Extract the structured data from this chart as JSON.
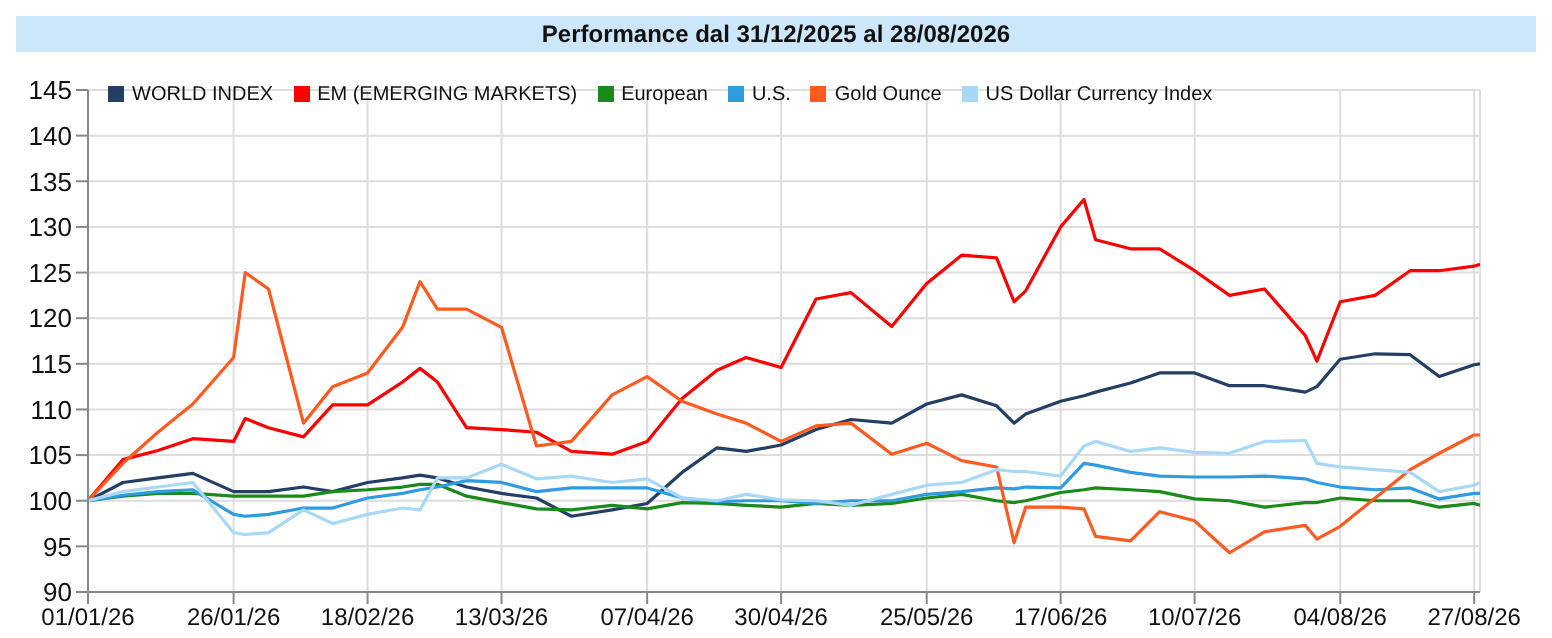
{
  "chart_data": {
    "type": "line",
    "title": "Performance dal 31/12/2025 al 28/08/2026",
    "x": [
      "2026-01-01",
      "2026-01-07",
      "2026-01-13",
      "2026-01-19",
      "2026-01-26",
      "2026-01-28",
      "2026-02-01",
      "2026-02-07",
      "2026-02-12",
      "2026-02-18",
      "2026-02-24",
      "2026-02-27",
      "2026-03-02",
      "2026-03-07",
      "2026-03-13",
      "2026-03-19",
      "2026-03-25",
      "2026-04-01",
      "2026-04-07",
      "2026-04-13",
      "2026-04-19",
      "2026-04-24",
      "2026-04-30",
      "2026-05-06",
      "2026-05-12",
      "2026-05-19",
      "2026-05-25",
      "2026-05-31",
      "2026-06-06",
      "2026-06-09",
      "2026-06-11",
      "2026-06-17",
      "2026-06-21",
      "2026-06-23",
      "2026-06-29",
      "2026-07-04",
      "2026-07-10",
      "2026-07-16",
      "2026-07-22",
      "2026-07-29",
      "2026-07-31",
      "2026-08-04",
      "2026-08-10",
      "2026-08-16",
      "2026-08-21",
      "2026-08-27",
      "2026-08-28"
    ],
    "series": [
      {
        "name": "WORLD INDEX",
        "color": "#243f66",
        "values": [
          100,
          102,
          102.5,
          103,
          101,
          101,
          101,
          101.5,
          101,
          102,
          102.5,
          102.8,
          102.5,
          101.5,
          100.8,
          100.3,
          98.3,
          99,
          99.7,
          103.1,
          105.8,
          105.4,
          106.1,
          107.8,
          108.9,
          108.5,
          110.6,
          111.6,
          110.4,
          108.5,
          109.5,
          110.9,
          111.5,
          111.9,
          112.9,
          114,
          114,
          112.6,
          112.6,
          111.9,
          112.5,
          115.5,
          116.1,
          116,
          113.6,
          114.9,
          115
        ]
      },
      {
        "name": "EM (EMERGING MARKETS)",
        "color": "#ff0000",
        "values": [
          100,
          104.5,
          105.5,
          106.8,
          106.5,
          109,
          108,
          107,
          110.5,
          110.5,
          113,
          114.5,
          113,
          108,
          107.8,
          107.5,
          105.4,
          105.1,
          106.5,
          111.2,
          114.3,
          115.7,
          114.6,
          122.1,
          122.8,
          119.1,
          123.8,
          126.9,
          126.6,
          121.8,
          123,
          130,
          133,
          128.6,
          127.6,
          127.6,
          125.2,
          122.5,
          123.2,
          118.1,
          115.3,
          121.8,
          122.5,
          125.2,
          125.2,
          125.7,
          125.9
        ]
      },
      {
        "name": "European",
        "color": "#1a8a1a",
        "values": [
          100,
          100.5,
          100.8,
          100.8,
          100.5,
          100.5,
          100.5,
          100.5,
          101,
          101.2,
          101.5,
          101.8,
          101.8,
          100.5,
          99.8,
          99.1,
          99,
          99.5,
          99.1,
          99.8,
          99.7,
          99.5,
          99.3,
          99.7,
          99.5,
          99.7,
          100.3,
          100.7,
          100,
          99.8,
          100,
          100.9,
          101.2,
          101.4,
          101.2,
          101,
          100.2,
          100,
          99.3,
          99.8,
          99.8,
          100.3,
          100,
          100,
          99.3,
          99.7,
          99.5
        ]
      },
      {
        "name": "U.S.",
        "color": "#2f9be0",
        "values": [
          100,
          100.6,
          101,
          101.2,
          98.5,
          98.3,
          98.5,
          99.2,
          99.2,
          100.3,
          100.8,
          101.2,
          101.5,
          102.2,
          102,
          101,
          101.4,
          101.4,
          101.4,
          100.3,
          99.9,
          100,
          100,
          99.7,
          100,
          100,
          100.7,
          101,
          101.4,
          101.3,
          101.5,
          101.4,
          104.1,
          103.9,
          103.1,
          102.7,
          102.6,
          102.6,
          102.7,
          102.4,
          102,
          101.5,
          101.2,
          101.4,
          100.2,
          100.8,
          100.8
        ]
      },
      {
        "name": "Gold Ounce",
        "color": "#ff5a1f",
        "values": [
          100,
          104.1,
          107.5,
          110.6,
          115.7,
          125,
          123.2,
          108.5,
          112.5,
          114,
          119,
          124,
          121,
          121,
          119,
          106,
          106.5,
          111.6,
          113.6,
          110.9,
          109.5,
          108.5,
          106.5,
          108.2,
          108.5,
          105.1,
          106.3,
          104.4,
          103.7,
          95.4,
          99.3,
          99.3,
          99.1,
          96.1,
          95.6,
          98.8,
          97.8,
          94.3,
          96.6,
          97.3,
          95.8,
          97.2,
          100.3,
          103.4,
          105.2,
          107.2,
          107.2
        ]
      },
      {
        "name": "US Dollar Currency Index",
        "color": "#a8d8f8",
        "values": [
          100,
          101,
          101.5,
          102,
          96.5,
          96.3,
          96.5,
          99,
          97.5,
          98.5,
          99.2,
          99,
          102.5,
          102.5,
          104,
          102.4,
          102.7,
          102,
          102.4,
          100.3,
          100,
          100.7,
          100.1,
          100,
          99.5,
          100.7,
          101.7,
          102,
          103.4,
          103.2,
          103.2,
          102.7,
          106,
          106.5,
          105.4,
          105.8,
          105.3,
          105.2,
          106.5,
          106.6,
          104.1,
          103.7,
          103.4,
          103.1,
          101,
          101.7,
          102
        ]
      }
    ],
    "xlim": [
      "2026-01-01",
      "2026-08-28"
    ],
    "xticks": [
      {
        "value": "2026-01-01",
        "label": "01/01/26"
      },
      {
        "value": "2026-01-26",
        "label": "26/01/26"
      },
      {
        "value": "2026-02-18",
        "label": "18/02/26"
      },
      {
        "value": "2026-03-13",
        "label": "13/03/26"
      },
      {
        "value": "2026-04-07",
        "label": "07/04/26"
      },
      {
        "value": "2026-04-30",
        "label": "30/04/26"
      },
      {
        "value": "2026-05-25",
        "label": "25/05/26"
      },
      {
        "value": "2026-06-17",
        "label": "17/06/26"
      },
      {
        "value": "2026-07-10",
        "label": "10/07/26"
      },
      {
        "value": "2026-08-04",
        "label": "04/08/26"
      },
      {
        "value": "2026-08-27",
        "label": "27/08/26"
      }
    ],
    "ylim": [
      90,
      145
    ],
    "yticks": [
      90,
      95,
      100,
      105,
      110,
      115,
      120,
      125,
      130,
      135,
      140,
      145
    ],
    "grid": true,
    "legend": "top",
    "marker": "none",
    "line_style": "solid"
  }
}
